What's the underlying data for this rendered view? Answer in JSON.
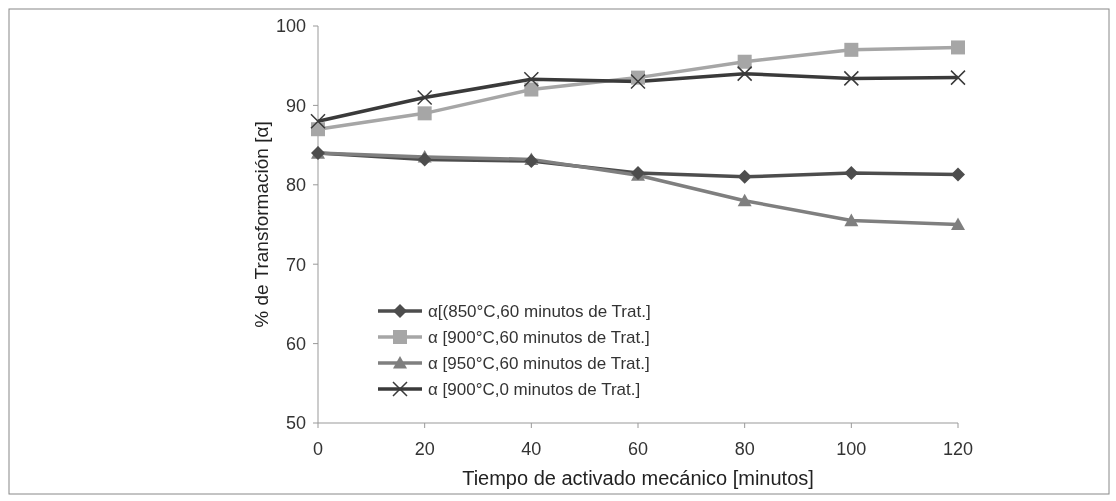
{
  "chart_data": {
    "type": "line",
    "xlabel": "Tiempo de activado mecánico [minutos]",
    "ylabel": "% de Transformación [α]",
    "x": [
      0,
      20,
      40,
      60,
      80,
      100,
      120
    ],
    "xlim": [
      0,
      120
    ],
    "xticks": [
      0,
      20,
      40,
      60,
      80,
      100,
      120
    ],
    "ylim": [
      50,
      100
    ],
    "yticks": [
      50,
      60,
      70,
      80,
      90,
      100
    ],
    "grid": false,
    "legend": "bottom left",
    "series": [
      {
        "name": "α[(850°C,60 minutos de Trat.]",
        "color": "#4d4d4d",
        "marker": "diamond",
        "values": [
          84,
          83.2,
          83,
          81.5,
          81,
          81.5,
          81.3
        ]
      },
      {
        "name": "α [900°C,60 minutos de Trat.]",
        "color": "#a6a6a6",
        "marker": "square",
        "values": [
          87,
          89,
          92,
          93.5,
          95.5,
          97,
          97.3
        ]
      },
      {
        "name": "α [950°C,60 minutos de Trat.]",
        "color": "#7f7f7f",
        "marker": "triangle",
        "values": [
          84,
          83.5,
          83.2,
          81.2,
          78,
          75.5,
          75
        ]
      },
      {
        "name": "α [900°C,0 minutos de Trat.]",
        "color": "#3a3a3a",
        "marker": "cross",
        "values": [
          88,
          91,
          93.3,
          93,
          94,
          93.4,
          93.5
        ]
      }
    ]
  }
}
